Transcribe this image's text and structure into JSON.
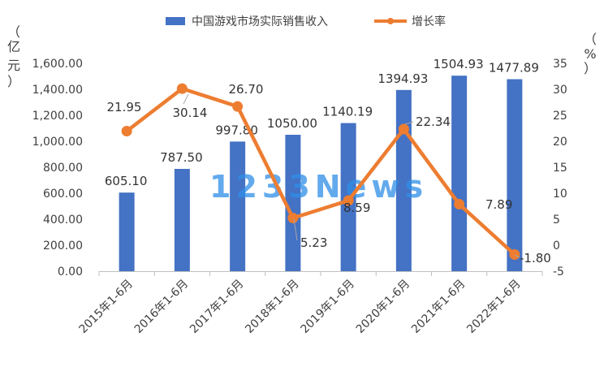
{
  "watermark": "1233News",
  "chart_data": {
    "type": "bar+line",
    "categories": [
      "2015年1-6月",
      "2016年1-6月",
      "2017年1-6月",
      "2018年1-6月",
      "2019年1-6月",
      "2020年1-6月",
      "2021年1-6月",
      "2022年1-6月"
    ],
    "series": [
      {
        "name": "中国游戏市场实际销售收入",
        "type": "bar",
        "axis": "left",
        "color": "#4472c4",
        "values": [
          605.1,
          787.5,
          997.8,
          1050.0,
          1140.19,
          1394.93,
          1504.93,
          1477.89
        ],
        "labels": [
          "605.10",
          "787.50",
          "997.80",
          "1050.00",
          "1140.19",
          "1394.93",
          "1504.93",
          "1477.89"
        ]
      },
      {
        "name": "增长率",
        "type": "line",
        "axis": "right",
        "color": "#ed7d31",
        "values": [
          21.95,
          30.14,
          26.7,
          5.23,
          8.59,
          22.34,
          7.89,
          -1.8
        ],
        "labels": [
          "21.95",
          "30.14",
          "26.70",
          "5.23",
          "8.59",
          "22.34",
          "7.89",
          "-1.80"
        ]
      }
    ],
    "y_left": {
      "unit_label": "亿元",
      "unit_chars": [
        "（",
        "亿",
        "元",
        "）"
      ],
      "ylim": [
        0,
        1600
      ],
      "ticks": [
        0,
        200,
        400,
        600,
        800,
        1000,
        1200,
        1400,
        1600
      ],
      "tick_labels": [
        "0.00",
        "200.00",
        "400.00",
        "600.00",
        "800.00",
        "1,000.00",
        "1,200.00",
        "1,400.00",
        "1,600.00"
      ]
    },
    "y_right": {
      "unit_label": "%",
      "unit_chars": [
        "（",
        "%",
        "）"
      ],
      "ylim": [
        -5,
        35
      ],
      "ticks": [
        -5,
        0,
        5,
        10,
        15,
        20,
        25,
        30,
        35
      ],
      "tick_labels": [
        "-5",
        "0",
        "5",
        "10",
        "15",
        "20",
        "25",
        "30",
        "35"
      ]
    },
    "legend_position": "top",
    "grid": false
  }
}
